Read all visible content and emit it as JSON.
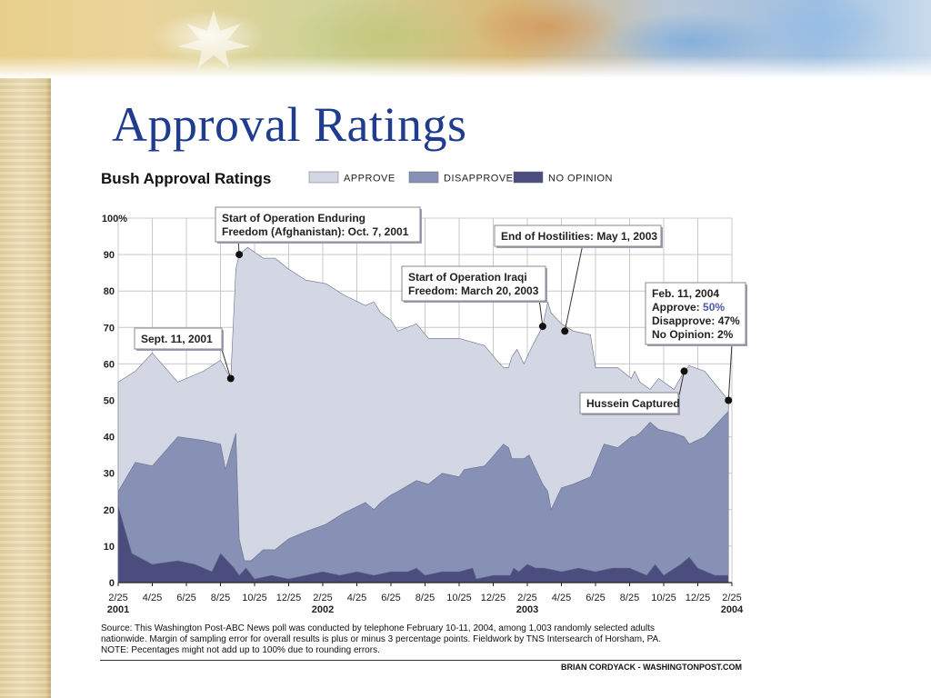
{
  "slide": {
    "title": "Approval Ratings"
  },
  "colors": {
    "approve": "#d3d7e3",
    "disapprove": "#8691b5",
    "no_opinion": "#4b4d7e",
    "title": "#1f3c8f",
    "accent_value": "#4a5aa8"
  },
  "chart_data": {
    "type": "area",
    "title": "Bush Approval Ratings",
    "stacked": true,
    "ylim": [
      0,
      100
    ],
    "y_ticks": [
      "0",
      "10",
      "20",
      "30",
      "40",
      "50",
      "60",
      "70",
      "80",
      "90",
      "100%"
    ],
    "y_tick_values": [
      0,
      10,
      20,
      30,
      40,
      50,
      60,
      70,
      80,
      90,
      100
    ],
    "x_tick_labels": [
      "2/25",
      "4/25",
      "6/25",
      "8/25",
      "10/25",
      "12/25",
      "2/25",
      "4/25",
      "6/25",
      "8/25",
      "10/25",
      "12/25",
      "2/25",
      "4/25",
      "6/25",
      "8/25",
      "10/25",
      "12/25",
      "2/25"
    ],
    "year_labels": [
      {
        "label": "2001",
        "month": 0
      },
      {
        "label": "2002",
        "month": 12
      },
      {
        "label": "2003",
        "month": 24
      },
      {
        "label": "2004",
        "month": 36
      }
    ],
    "xlim": [
      0,
      36
    ],
    "legend": [
      {
        "key": "approve",
        "label": "APPROVE"
      },
      {
        "key": "disapprove",
        "label": "DISAPPROVE"
      },
      {
        "key": "no_opinion",
        "label": "NO OPINION"
      }
    ],
    "series": [
      {
        "key": "approve",
        "name": "APPROVE",
        "points": [
          [
            0,
            55
          ],
          [
            1,
            58
          ],
          [
            2,
            63
          ],
          [
            3.5,
            55
          ],
          [
            5,
            58
          ],
          [
            6,
            61
          ],
          [
            6.6,
            56
          ],
          [
            6.9,
            86
          ],
          [
            7.1,
            90
          ],
          [
            7.6,
            92
          ],
          [
            8.5,
            89
          ],
          [
            9.2,
            89
          ],
          [
            10,
            86
          ],
          [
            11,
            83
          ],
          [
            12.2,
            82
          ],
          [
            13.2,
            79
          ],
          [
            14.5,
            76
          ],
          [
            15,
            77
          ],
          [
            15.4,
            74
          ],
          [
            16,
            72
          ],
          [
            16.4,
            69
          ],
          [
            17.5,
            71
          ],
          [
            18.2,
            67
          ],
          [
            20,
            67
          ],
          [
            21.5,
            65
          ],
          [
            22.2,
            61
          ],
          [
            22.6,
            59
          ],
          [
            22.9,
            59
          ],
          [
            23.1,
            62
          ],
          [
            23.4,
            64
          ],
          [
            23.8,
            60
          ],
          [
            24.3,
            65
          ],
          [
            24.9,
            70.3
          ],
          [
            25.2,
            77
          ],
          [
            25.4,
            74
          ],
          [
            26,
            71
          ],
          [
            26.7,
            69
          ],
          [
            27.7,
            68
          ],
          [
            28,
            59
          ],
          [
            29.3,
            59
          ],
          [
            30.1,
            56
          ],
          [
            30.3,
            58
          ],
          [
            30.6,
            55
          ],
          [
            31.2,
            53
          ],
          [
            31.7,
            56
          ],
          [
            32.6,
            53
          ],
          [
            33.2,
            58
          ],
          [
            33.5,
            59.5
          ],
          [
            34.4,
            58
          ],
          [
            35.8,
            50
          ]
        ]
      },
      {
        "key": "disapprove",
        "name": "DISAPPROVE",
        "points": [
          [
            0,
            25
          ],
          [
            1,
            33
          ],
          [
            2,
            32
          ],
          [
            3.5,
            40
          ],
          [
            5,
            39
          ],
          [
            6,
            38
          ],
          [
            6.3,
            31
          ],
          [
            6.9,
            41
          ],
          [
            7.1,
            12
          ],
          [
            7.4,
            6
          ],
          [
            7.8,
            6
          ],
          [
            8.5,
            9
          ],
          [
            9.2,
            9
          ],
          [
            10,
            12
          ],
          [
            11,
            14
          ],
          [
            12.2,
            16
          ],
          [
            13.2,
            19
          ],
          [
            14.5,
            22
          ],
          [
            15,
            20
          ],
          [
            15.4,
            22
          ],
          [
            16,
            24
          ],
          [
            16.4,
            25
          ],
          [
            17.5,
            28
          ],
          [
            18.2,
            27
          ],
          [
            19,
            30
          ],
          [
            20,
            29
          ],
          [
            20.3,
            31
          ],
          [
            21.5,
            32
          ],
          [
            22.6,
            38
          ],
          [
            22.9,
            37
          ],
          [
            23.1,
            34
          ],
          [
            23.8,
            34
          ],
          [
            24.1,
            35
          ],
          [
            24.9,
            27
          ],
          [
            25.2,
            25
          ],
          [
            25.4,
            20
          ],
          [
            26,
            26
          ],
          [
            26.7,
            27
          ],
          [
            27.7,
            29
          ],
          [
            28.5,
            38
          ],
          [
            29.3,
            37
          ],
          [
            30.1,
            40
          ],
          [
            30.3,
            40
          ],
          [
            30.6,
            41
          ],
          [
            31.2,
            44
          ],
          [
            31.7,
            42
          ],
          [
            32.6,
            41
          ],
          [
            33.2,
            40
          ],
          [
            33.5,
            38
          ],
          [
            34.4,
            40
          ],
          [
            35.8,
            47
          ]
        ]
      },
      {
        "key": "no_opinion",
        "name": "NO OPINION",
        "points": [
          [
            0,
            21
          ],
          [
            0.8,
            8
          ],
          [
            2,
            5
          ],
          [
            3.5,
            6
          ],
          [
            4.5,
            5
          ],
          [
            5.5,
            3
          ],
          [
            6,
            8
          ],
          [
            6.8,
            4
          ],
          [
            7.1,
            2
          ],
          [
            7.5,
            4
          ],
          [
            8,
            1
          ],
          [
            9,
            2
          ],
          [
            10,
            1
          ],
          [
            11,
            2
          ],
          [
            12,
            3
          ],
          [
            13,
            2
          ],
          [
            14,
            3
          ],
          [
            15,
            2
          ],
          [
            16,
            3
          ],
          [
            17,
            3
          ],
          [
            17.5,
            4
          ],
          [
            18,
            2
          ],
          [
            19,
            3
          ],
          [
            20,
            3
          ],
          [
            20.8,
            4
          ],
          [
            21,
            1
          ],
          [
            22,
            2
          ],
          [
            23,
            2
          ],
          [
            23.2,
            4
          ],
          [
            23.5,
            3
          ],
          [
            24,
            5
          ],
          [
            24.5,
            4
          ],
          [
            25,
            4
          ],
          [
            26,
            3
          ],
          [
            27,
            4
          ],
          [
            28,
            3
          ],
          [
            29,
            4
          ],
          [
            30,
            4
          ],
          [
            31,
            2
          ],
          [
            31.5,
            5
          ],
          [
            32,
            2
          ],
          [
            33,
            5
          ],
          [
            33.5,
            7
          ],
          [
            34,
            4
          ],
          [
            35,
            2
          ],
          [
            35.8,
            2
          ]
        ]
      }
    ],
    "annotations": [
      {
        "id": "sept11",
        "lines": [
          "Sept. 11, 2001"
        ],
        "x": 6.6,
        "y": 56
      },
      {
        "id": "enduring",
        "lines": [
          "Start of Operation Enduring",
          "Freedom (Afghanistan): Oct. 7, 2001"
        ],
        "x": 7.1,
        "y": 90
      },
      {
        "id": "iraqi",
        "lines": [
          "Start of Operation Iraqi",
          "Freedom: March 20, 2003"
        ],
        "x": 24.9,
        "y": 70.3
      },
      {
        "id": "hostilities",
        "lines": [
          "End of Hostilities: May 1, 2003"
        ],
        "x": 26.2,
        "y": 69
      },
      {
        "id": "hussein",
        "lines": [
          "Hussein Captured"
        ],
        "x": 33.2,
        "y": 58
      },
      {
        "id": "feb11",
        "title": "Feb. 11, 2004",
        "rows": [
          {
            "label": "Approve: ",
            "value": "50%"
          },
          {
            "label": "Disapprove: ",
            "value": "47%"
          },
          {
            "label": "No Opinion: ",
            "value": "2%"
          }
        ],
        "x": 35.8,
        "y": 50
      }
    ]
  },
  "footnote": {
    "lines": [
      "Source: This Washington Post-ABC News poll was conducted by telephone February 10-11, 2004, among 1,003 randomly selected adults",
      "nationwide. Margin of sampling error for overall results is plus or minus 3 percentage points. Fieldwork by TNS Intersearch of Horsham, PA.",
      "NOTE: Pecentages might not add up to 100% due to rounding errors."
    ],
    "credit": "BRIAN CORDYACK - WASHINGTONPOST.COM"
  }
}
